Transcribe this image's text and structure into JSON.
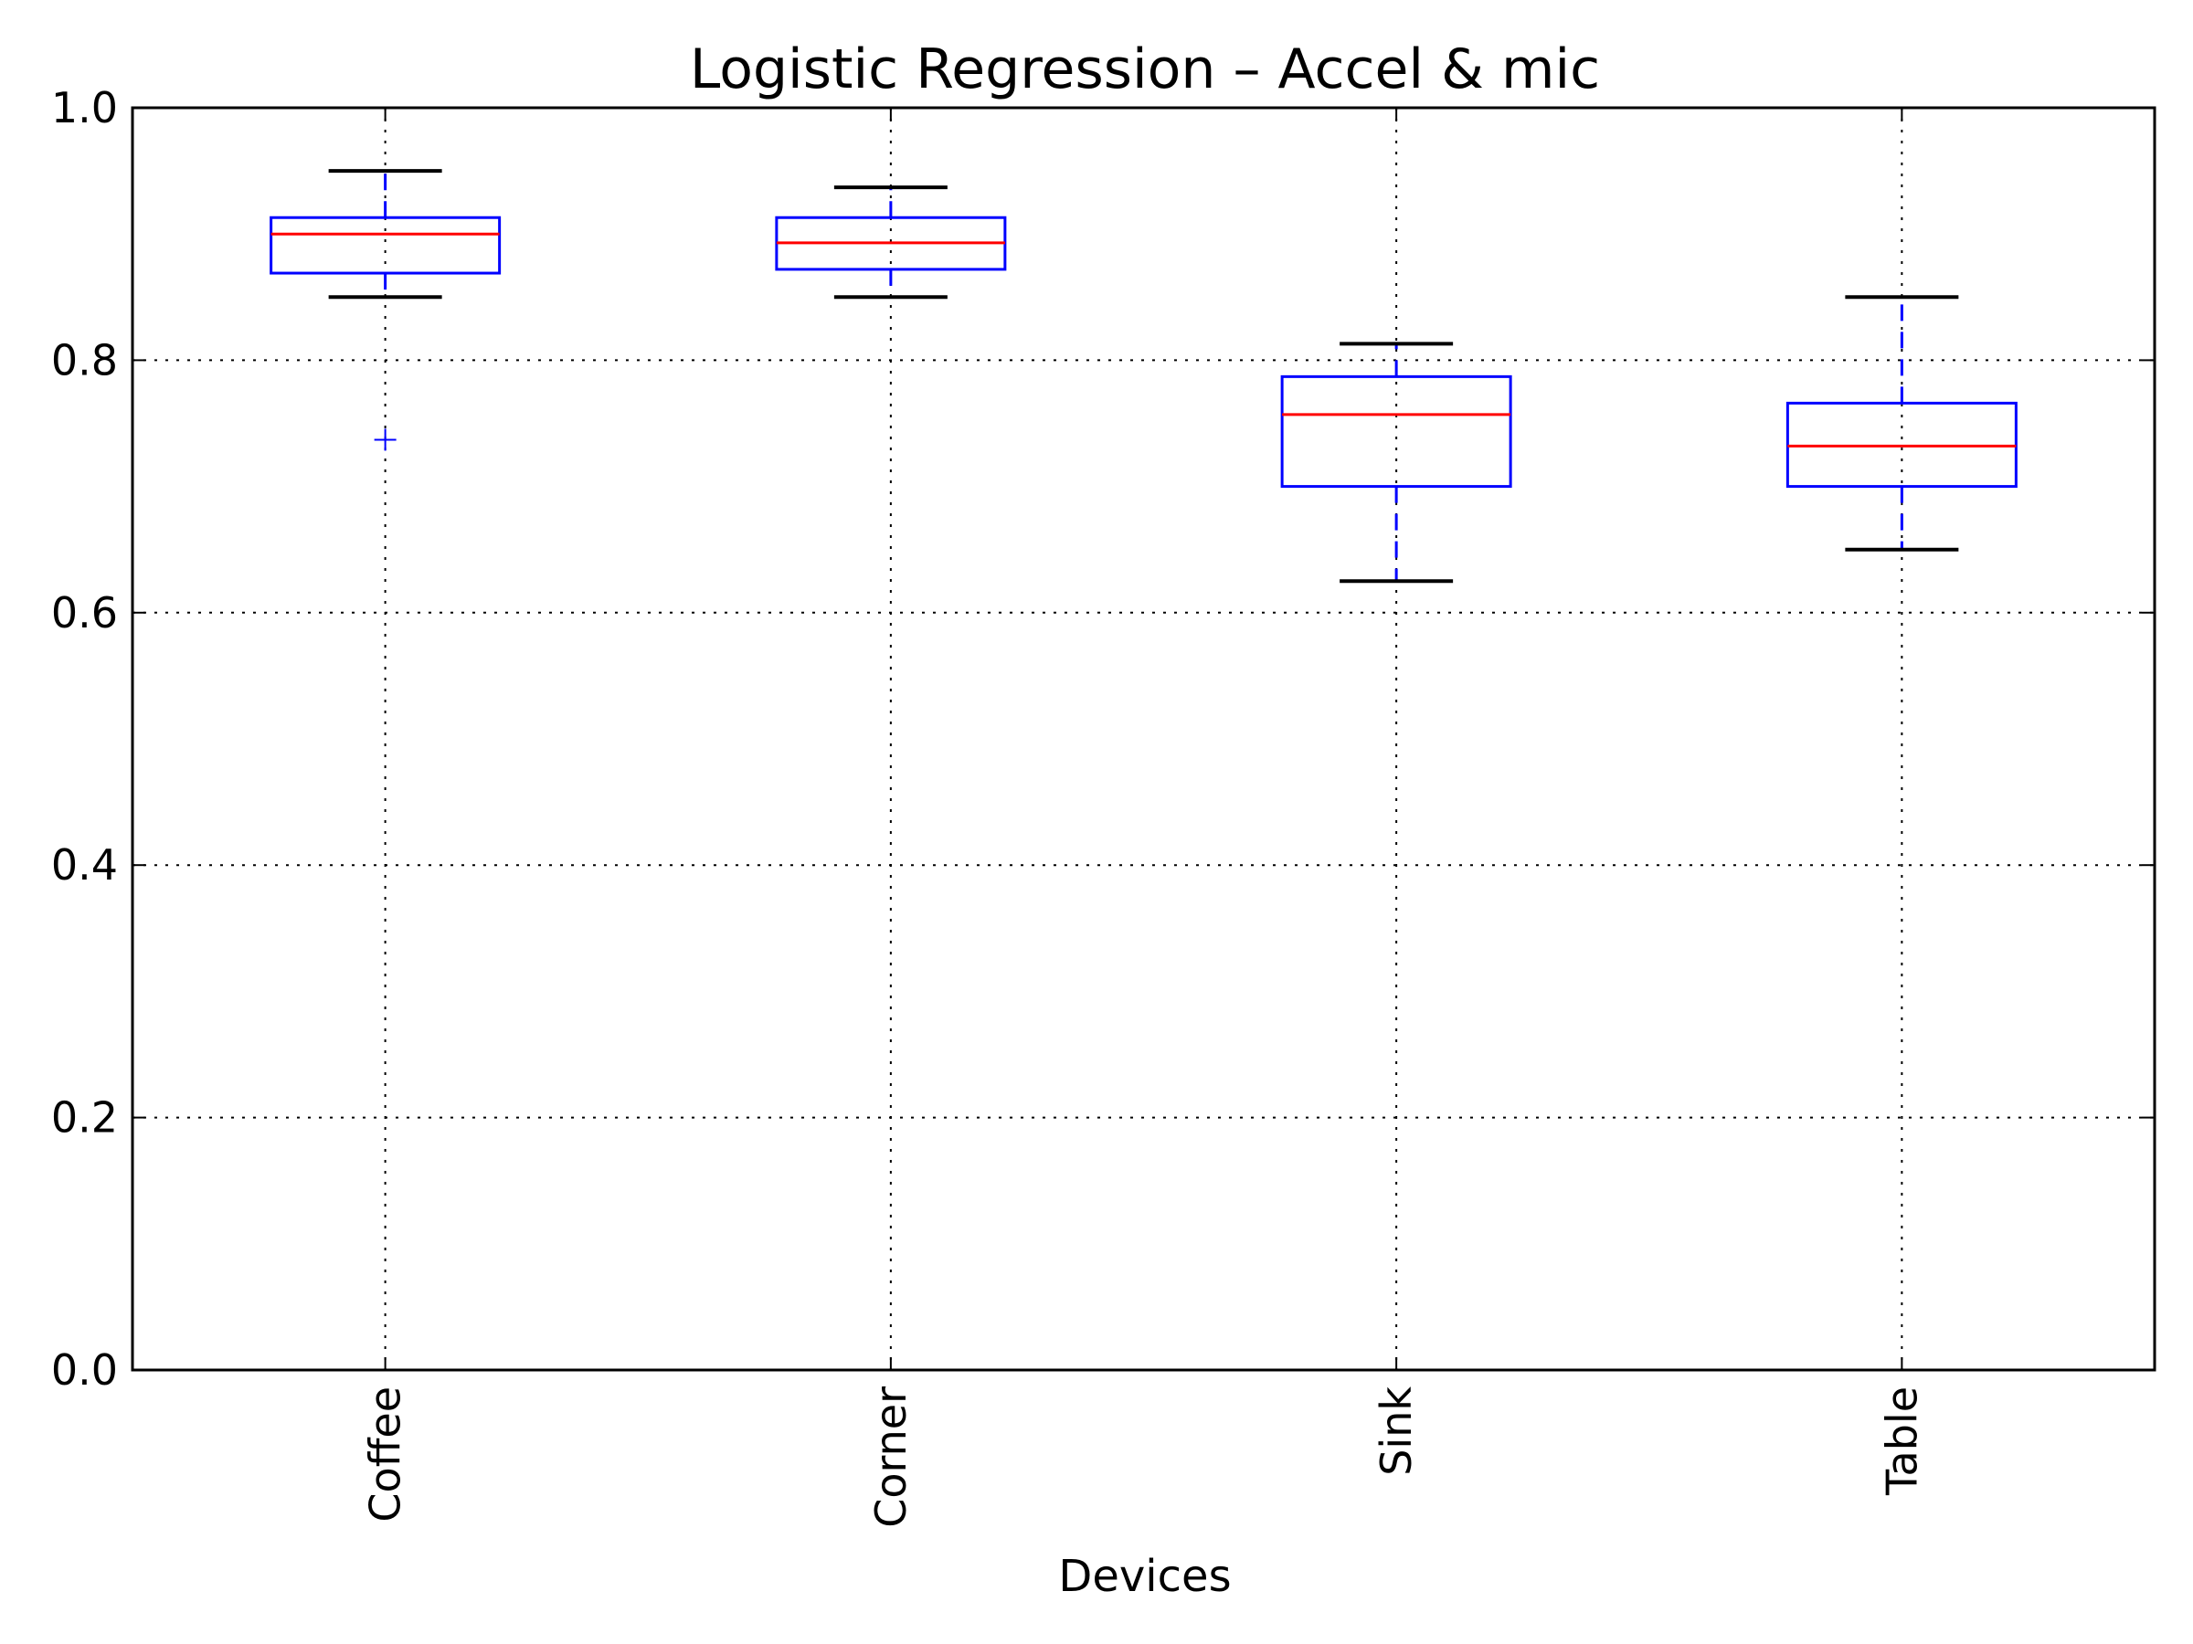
{
  "chart_data": {
    "type": "box",
    "title": "Logistic Regression – Accel & mic",
    "xlabel": "Devices",
    "ylabel": "",
    "ylim": [
      0.0,
      1.0
    ],
    "yticks": [
      "0.0",
      "0.2",
      "0.4",
      "0.6",
      "0.8",
      "1.0"
    ],
    "grid": true,
    "categories": [
      "Coffee",
      "Corner",
      "Sink",
      "Table"
    ],
    "boxes": [
      {
        "name": "Coffee",
        "whisker_low": 0.85,
        "q1": 0.869,
        "median": 0.9,
        "q3": 0.913,
        "whisker_high": 0.95,
        "outliers": [
          0.737
        ]
      },
      {
        "name": "Corner",
        "whisker_low": 0.85,
        "q1": 0.872,
        "median": 0.893,
        "q3": 0.913,
        "whisker_high": 0.937,
        "outliers": []
      },
      {
        "name": "Sink",
        "whisker_low": 0.625,
        "q1": 0.7,
        "median": 0.757,
        "q3": 0.787,
        "whisker_high": 0.813,
        "outliers": []
      },
      {
        "name": "Table",
        "whisker_low": 0.65,
        "q1": 0.7,
        "median": 0.732,
        "q3": 0.766,
        "whisker_high": 0.85,
        "outliers": []
      }
    ],
    "colors": {
      "box": "#0000ff",
      "median": "#ff0000",
      "whisker_cap": "#000000",
      "grid": "#000000",
      "background": "#ffffff"
    }
  }
}
